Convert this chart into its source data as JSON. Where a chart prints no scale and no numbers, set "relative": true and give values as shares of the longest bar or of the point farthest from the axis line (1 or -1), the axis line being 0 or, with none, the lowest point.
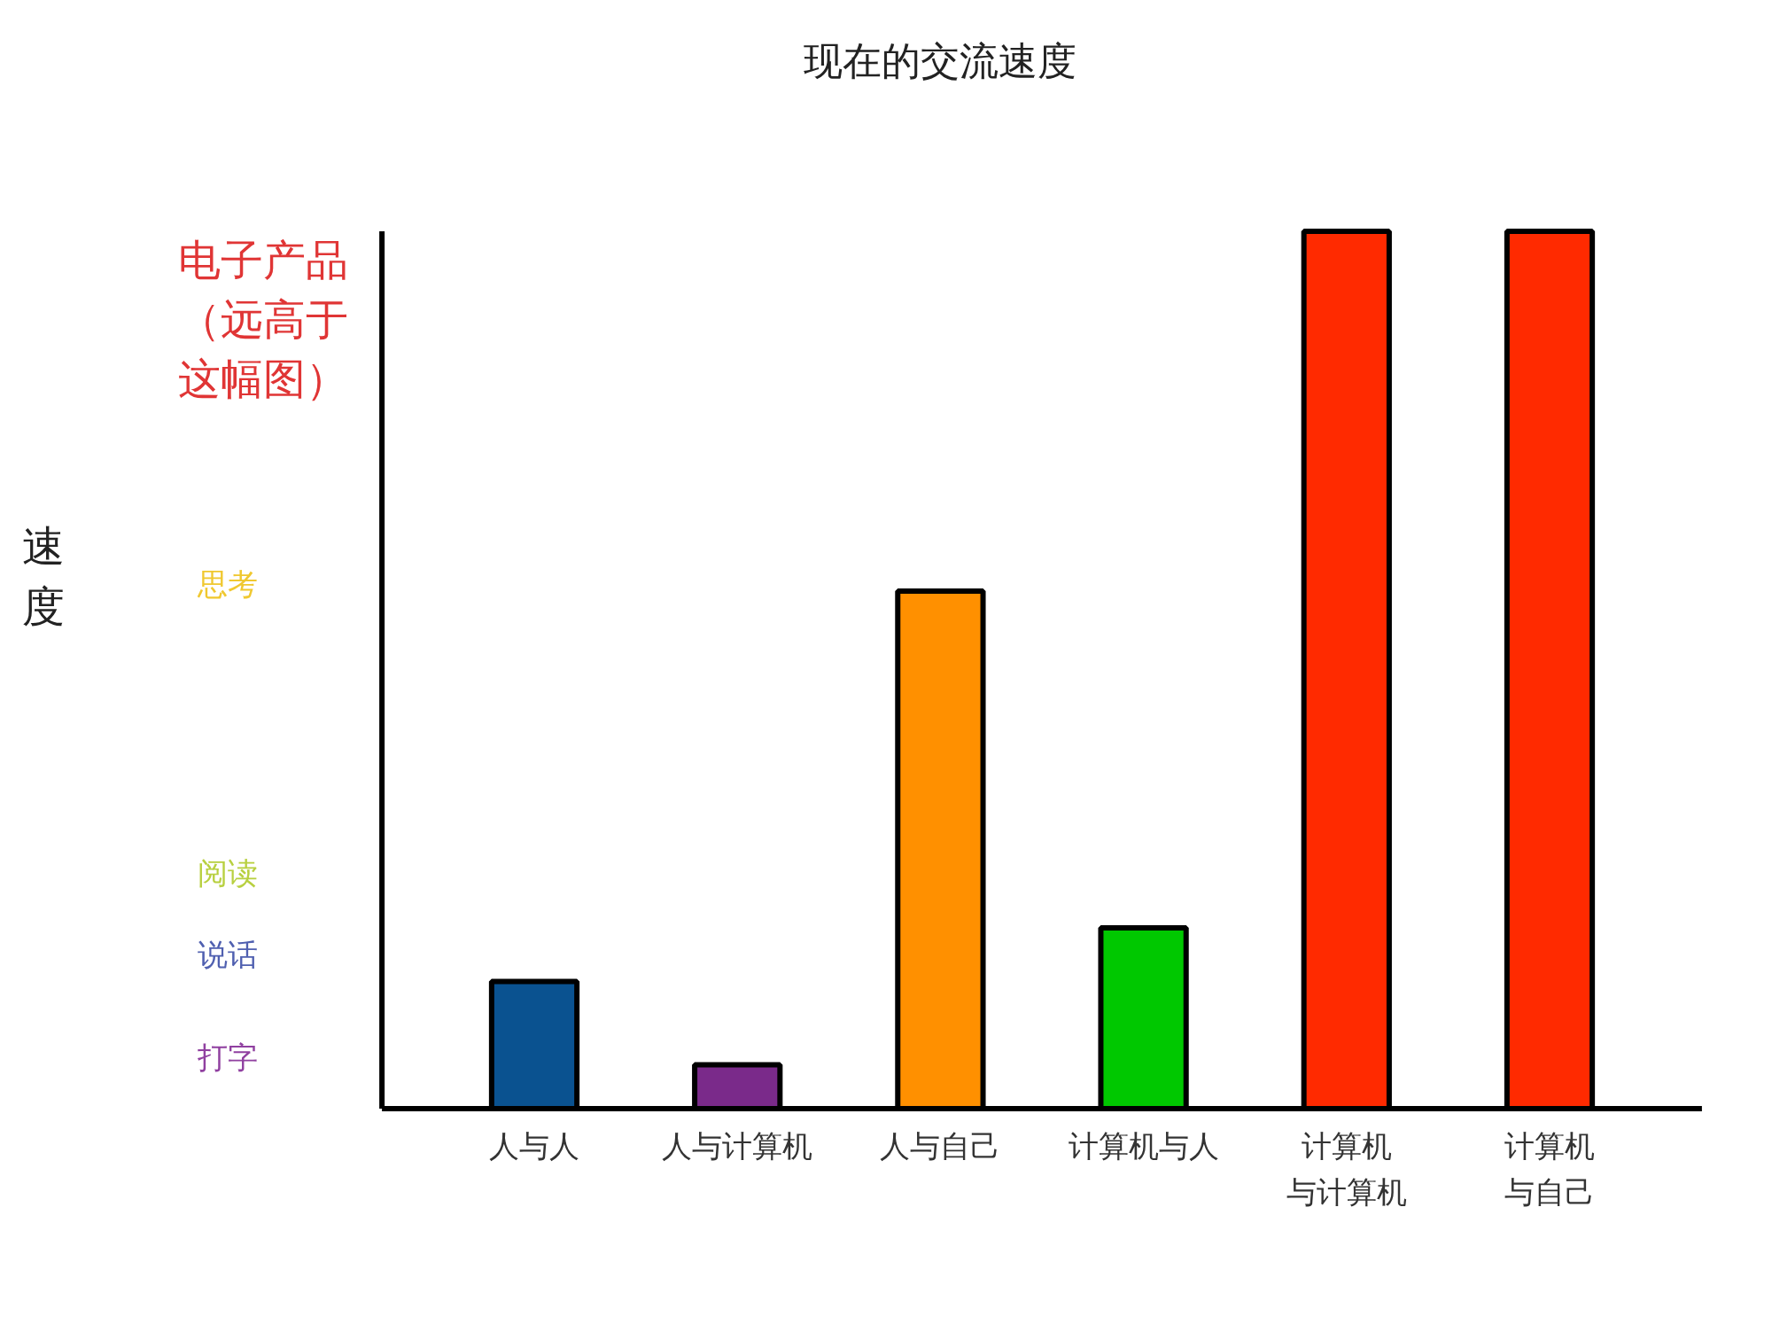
{
  "chart_data": {
    "type": "bar",
    "title": "现在的交流速度",
    "relative": true,
    "categories": [
      "人与人",
      "人与计算机",
      "人与自己",
      "计算机与人",
      "计算机与计算机",
      "计算机与自己"
    ],
    "values": [
      0.145,
      0.05,
      0.59,
      0.206,
      1,
      1
    ],
    "colors": [
      "#0a5290",
      "#7a2a8a",
      "#ff9000",
      "#00c800",
      "#ff2a00",
      "#ff2a00"
    ],
    "annotations": [
      "电子产品（远高于这幅图）",
      "思考",
      "阅读",
      "说话",
      "打字",
      "速度"
    ]
  }
}
